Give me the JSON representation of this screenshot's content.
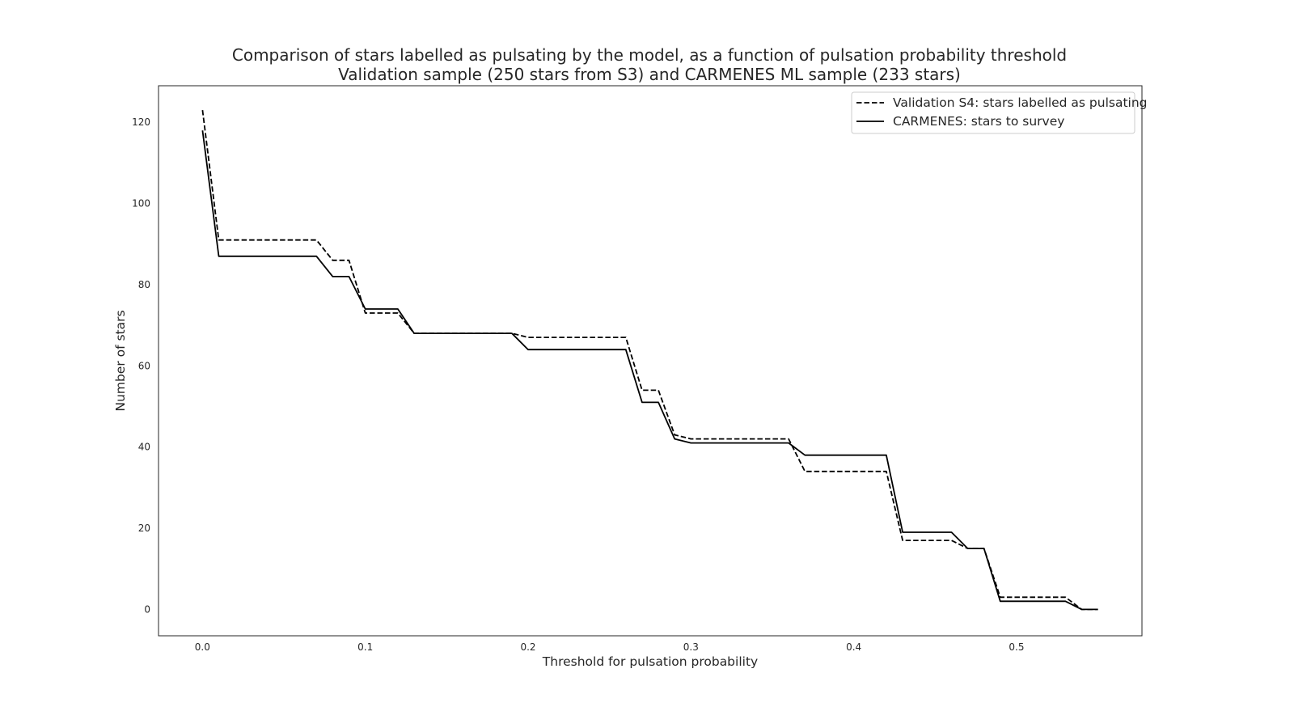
{
  "chart_data": {
    "type": "line",
    "title": "Comparison of stars labelled as pulsating by the model, as a function of pulsation probability threshold",
    "subtitle": "Validation sample (250 stars from S3) and CARMENES ML sample (233 stars)",
    "xlabel": "Threshold for pulsation probability",
    "ylabel": "Number of stars",
    "xlim": [
      -0.027,
      0.577
    ],
    "ylim": [
      -6.5,
      129
    ],
    "xticks": [
      0.0,
      0.1,
      0.2,
      0.3,
      0.4,
      0.5
    ],
    "xtick_labels": [
      "0.0",
      "0.1",
      "0.2",
      "0.3",
      "0.4",
      "0.5"
    ],
    "yticks": [
      0,
      20,
      40,
      60,
      80,
      100,
      120
    ],
    "ytick_labels": [
      "0",
      "20",
      "40",
      "60",
      "80",
      "100",
      "120"
    ],
    "grid": false,
    "legend_position": "top-right",
    "x": [
      0.0,
      0.01,
      0.02,
      0.03,
      0.04,
      0.05,
      0.06,
      0.07,
      0.08,
      0.09,
      0.1,
      0.11,
      0.12,
      0.13,
      0.14,
      0.15,
      0.16,
      0.17,
      0.18,
      0.19,
      0.2,
      0.21,
      0.22,
      0.23,
      0.24,
      0.25,
      0.26,
      0.27,
      0.28,
      0.29,
      0.3,
      0.31,
      0.32,
      0.33,
      0.34,
      0.35,
      0.36,
      0.37,
      0.38,
      0.39,
      0.4,
      0.41,
      0.42,
      0.43,
      0.44,
      0.45,
      0.46,
      0.47,
      0.48,
      0.49,
      0.5,
      0.51,
      0.52,
      0.53,
      0.54,
      0.55
    ],
    "series": [
      {
        "name": "Validation S4: stars labelled as pulsating",
        "style": "dashed",
        "color": "#000000",
        "values": [
          123,
          91,
          91,
          91,
          91,
          91,
          91,
          91,
          86,
          86,
          73,
          73,
          73,
          68,
          68,
          68,
          68,
          68,
          68,
          68,
          67,
          67,
          67,
          67,
          67,
          67,
          67,
          54,
          54,
          43,
          42,
          42,
          42,
          42,
          42,
          42,
          42,
          34,
          34,
          34,
          34,
          34,
          34,
          17,
          17,
          17,
          17,
          15,
          15,
          3,
          3,
          3,
          3,
          3,
          0,
          0
        ]
      },
      {
        "name": "CARMENES: stars to survey",
        "style": "solid",
        "color": "#000000",
        "values": [
          118,
          87,
          87,
          87,
          87,
          87,
          87,
          87,
          82,
          82,
          74,
          74,
          74,
          68,
          68,
          68,
          68,
          68,
          68,
          68,
          64,
          64,
          64,
          64,
          64,
          64,
          64,
          51,
          51,
          42,
          41,
          41,
          41,
          41,
          41,
          41,
          41,
          38,
          38,
          38,
          38,
          38,
          38,
          19,
          19,
          19,
          19,
          15,
          15,
          2,
          2,
          2,
          2,
          2,
          0,
          0
        ]
      }
    ]
  }
}
